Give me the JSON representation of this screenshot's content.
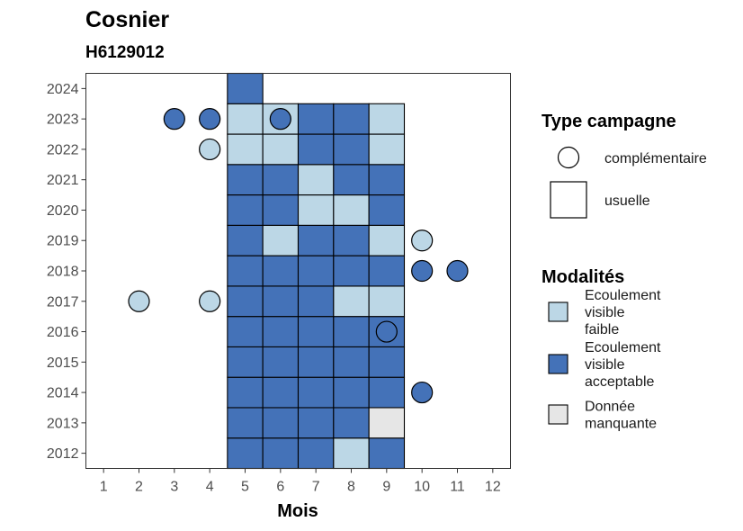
{
  "chart_data": {
    "type": "heatmap",
    "title": "Cosnier",
    "subtitle": "H6129012",
    "xlabel": "Mois",
    "ylabel": "",
    "x_ticks": [
      1,
      2,
      3,
      4,
      5,
      6,
      7,
      8,
      9,
      10,
      11,
      12
    ],
    "y_ticks": [
      2012,
      2013,
      2014,
      2015,
      2016,
      2017,
      2018,
      2019,
      2020,
      2021,
      2022,
      2023,
      2024
    ],
    "xlim": [
      0.5,
      12.5
    ],
    "ylim": [
      2011.5,
      2024.5
    ],
    "grid": false,
    "legend_placement": "right",
    "colors": {
      "faible": "#bcd7e6",
      "acceptable": "#4472b8",
      "manquante": "#e6e6e6",
      "outline": "#000000"
    },
    "legend_shape": {
      "title": "Type campagne",
      "entries": [
        {
          "shape": "circle",
          "label": "complémentaire"
        },
        {
          "shape": "square",
          "label": "usuelle"
        }
      ]
    },
    "legend_fill": {
      "title": "Modalités",
      "entries": [
        {
          "key": "faible",
          "lines": [
            "Ecoulement",
            "visible",
            "faible"
          ]
        },
        {
          "key": "acceptable",
          "lines": [
            "Ecoulement",
            "visible",
            "acceptable"
          ]
        },
        {
          "key": "manquante",
          "lines": [
            "Donnée",
            "manquante"
          ]
        }
      ]
    },
    "usuelle": [
      {
        "year": 2012,
        "months": [
          "acceptable",
          "acceptable",
          "acceptable",
          "faible",
          "acceptable"
        ]
      },
      {
        "year": 2013,
        "months": [
          "acceptable",
          "acceptable",
          "acceptable",
          "acceptable",
          "manquante"
        ]
      },
      {
        "year": 2014,
        "months": [
          "acceptable",
          "acceptable",
          "acceptable",
          "acceptable",
          "acceptable"
        ]
      },
      {
        "year": 2015,
        "months": [
          "acceptable",
          "acceptable",
          "acceptable",
          "acceptable",
          "acceptable"
        ]
      },
      {
        "year": 2016,
        "months": [
          "acceptable",
          "acceptable",
          "acceptable",
          "acceptable",
          "acceptable"
        ]
      },
      {
        "year": 2017,
        "months": [
          "acceptable",
          "acceptable",
          "acceptable",
          "faible",
          "faible"
        ]
      },
      {
        "year": 2018,
        "months": [
          "acceptable",
          "acceptable",
          "acceptable",
          "acceptable",
          "acceptable"
        ]
      },
      {
        "year": 2019,
        "months": [
          "acceptable",
          "faible",
          "acceptable",
          "acceptable",
          "faible"
        ]
      },
      {
        "year": 2020,
        "months": [
          "acceptable",
          "acceptable",
          "faible",
          "faible",
          "acceptable"
        ]
      },
      {
        "year": 2021,
        "months": [
          "acceptable",
          "acceptable",
          "faible",
          "acceptable",
          "acceptable"
        ]
      },
      {
        "year": 2022,
        "months": [
          "faible",
          "faible",
          "acceptable",
          "acceptable",
          "faible"
        ]
      },
      {
        "year": 2023,
        "months": [
          "faible",
          "faible",
          "acceptable",
          "acceptable",
          "faible"
        ]
      },
      {
        "year": 2024,
        "months": [
          "acceptable"
        ]
      }
    ],
    "usuelle_first_month": 5,
    "complementaire": [
      {
        "year": 2023,
        "month": 3,
        "value": "acceptable"
      },
      {
        "year": 2023,
        "month": 4,
        "value": "acceptable"
      },
      {
        "year": 2023,
        "month": 6,
        "value": "acceptable"
      },
      {
        "year": 2022,
        "month": 4,
        "value": "faible"
      },
      {
        "year": 2019,
        "month": 10,
        "value": "faible"
      },
      {
        "year": 2018,
        "month": 10,
        "value": "acceptable"
      },
      {
        "year": 2018,
        "month": 11,
        "value": "acceptable"
      },
      {
        "year": 2017,
        "month": 2,
        "value": "faible"
      },
      {
        "year": 2017,
        "month": 4,
        "value": "faible"
      },
      {
        "year": 2016,
        "month": 9,
        "value": "acceptable"
      },
      {
        "year": 2014,
        "month": 10,
        "value": "acceptable"
      }
    ]
  }
}
